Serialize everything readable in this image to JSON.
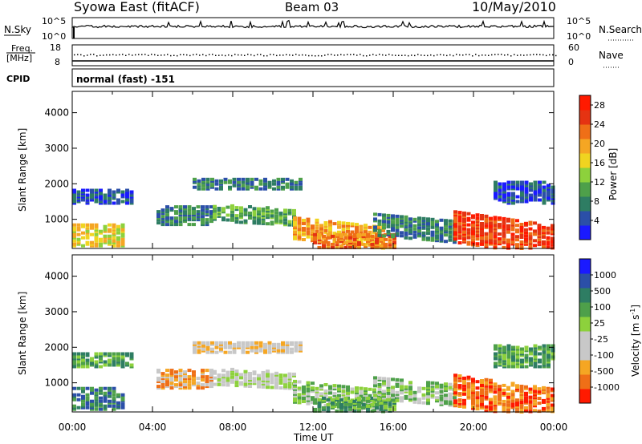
{
  "header": {
    "title": "Syowa East (fitACF)",
    "beam": "Beam 03",
    "date": "10/May/2010"
  },
  "noise_panel": {
    "left_label": "N.Sky",
    "right_label": "N.Search",
    "left_ticks": [
      "10^5",
      "10^0"
    ],
    "right_ticks": [
      "10^5",
      "10^0"
    ],
    "right_legend_line": "dotted"
  },
  "freq_panel": {
    "left_label_top": "Freq.",
    "left_label_bottom": "[MHz]",
    "right_label": "Nave",
    "left_ticks": [
      "18",
      "8"
    ],
    "right_ticks": [
      "60",
      "0"
    ],
    "right_legend_line": "dotted"
  },
  "cpid": {
    "label": "CPID",
    "value": "normal (fast) -151"
  },
  "colors": {
    "power_scale": [
      "#1a1aff",
      "#2b4fa8",
      "#2e7d63",
      "#4ea04a",
      "#8dd13c",
      "#f0d420",
      "#f5a623",
      "#ef6f17",
      "#e53312",
      "#ff1a00"
    ],
    "velocity_scale": [
      "#1a1aff",
      "#2b4fa8",
      "#2e7d63",
      "#4ea04a",
      "#8dd13c",
      "#c8c8c8",
      "#c8c8c8",
      "#f5a623",
      "#ef6f17",
      "#ff1a00"
    ]
  },
  "chart_data": [
    {
      "type": "heatmap",
      "panel": "power",
      "ylabel": "Slant Range [km]",
      "yticks": [
        "1000",
        "2000",
        "3000",
        "4000"
      ],
      "ylim": [
        180,
        4600
      ],
      "xlim": [
        "00:00",
        "24:00"
      ],
      "colorbar_label": "Power [dB]",
      "colorbar_ticks": [
        "4",
        "8",
        "12",
        "16",
        "20",
        "24",
        "28"
      ],
      "colorbar_range": [
        0,
        30
      ]
    },
    {
      "type": "heatmap",
      "panel": "velocity",
      "ylabel": "Slant Range [km]",
      "yticks": [
        "1000",
        "2000",
        "3000",
        "4000"
      ],
      "ylim": [
        180,
        4600
      ],
      "xlabel": "Time UT",
      "xticks": [
        "00:00",
        "04:00",
        "08:00",
        "12:00",
        "16:00",
        "20:00",
        "00:00"
      ],
      "xlim": [
        "00:00",
        "24:00"
      ],
      "colorbar_label": "Velocity [m s",
      "colorbar_label_sup": "-1",
      "colorbar_label_close": "]",
      "colorbar_ticks": [
        "1000",
        "500",
        "100",
        "25",
        "-25",
        "-100",
        "-500",
        "-1000"
      ]
    }
  ]
}
